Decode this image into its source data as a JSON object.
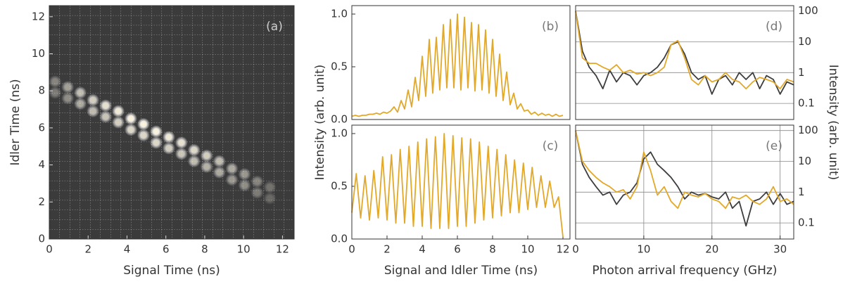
{
  "chart_data": [
    {
      "type": "heatmap",
      "xlabel": "Signal Time (ns)",
      "ylabel": "Idler Time (ns)",
      "panel_label": "(a)",
      "xlim": [
        0,
        12.6
      ],
      "ylim": [
        0,
        12.6
      ],
      "xticks": [
        0,
        2,
        4,
        6,
        8,
        10,
        12
      ],
      "yticks": [
        0,
        2,
        4,
        6,
        8,
        10,
        12
      ],
      "grid": true,
      "x": [
        0.3,
        0.95,
        1.6,
        2.25,
        2.9,
        3.55,
        4.2,
        4.85,
        5.5,
        6.15,
        6.8,
        7.45,
        8.1,
        8.75,
        9.4,
        10.05,
        10.7,
        11.35,
        0.3,
        0.95,
        1.6,
        2.25,
        2.9,
        3.55,
        4.2,
        4.85,
        5.5,
        6.15,
        6.8,
        7.45,
        8.1,
        8.75,
        9.4,
        10.05,
        10.7,
        11.35
      ],
      "values": [
        8.5,
        8.2,
        7.9,
        7.5,
        7.2,
        6.9,
        6.5,
        6.2,
        5.8,
        5.5,
        5.2,
        4.8,
        4.5,
        4.2,
        3.8,
        3.5,
        3.1,
        2.8,
        7.9,
        7.6,
        7.3,
        6.9,
        6.6,
        6.3,
        5.9,
        5.6,
        5.2,
        4.9,
        4.6,
        4.2,
        3.9,
        3.6,
        3.2,
        2.9,
        2.5,
        2.2
      ],
      "intensity": [
        0.4,
        0.55,
        0.7,
        0.8,
        0.9,
        0.95,
        1,
        1,
        1,
        0.95,
        0.9,
        0.85,
        0.8,
        0.7,
        0.6,
        0.5,
        0.4,
        0.3,
        0.35,
        0.45,
        0.6,
        0.7,
        0.75,
        0.8,
        0.85,
        0.85,
        0.85,
        0.8,
        0.75,
        0.7,
        0.65,
        0.6,
        0.5,
        0.45,
        0.35,
        0.25
      ]
    },
    {
      "type": "line",
      "ylabel": "Intensity (arb. unit)",
      "panel_label": "(b)",
      "color": "#e2a829",
      "xlim": [
        0,
        12.4
      ],
      "ylim": [
        0,
        1.08
      ],
      "yticks": [
        {
          "value": 0,
          "label": "0.0"
        },
        {
          "value": 0.5,
          "label": "0.5"
        },
        {
          "value": 1,
          "label": "1.0"
        }
      ],
      "x": [
        0,
        0.2,
        0.4,
        0.6,
        0.8,
        1,
        1.2,
        1.4,
        1.6,
        1.8,
        2,
        2.2,
        2.4,
        2.6,
        2.8,
        3,
        3.2,
        3.4,
        3.6,
        3.8,
        4,
        4.2,
        4.4,
        4.6,
        4.8,
        5,
        5.2,
        5.4,
        5.6,
        5.8,
        6,
        6.2,
        6.4,
        6.6,
        6.8,
        7,
        7.2,
        7.4,
        7.6,
        7.8,
        8,
        8.2,
        8.4,
        8.6,
        8.8,
        9,
        9.2,
        9.4,
        9.6,
        9.8,
        10,
        10.2,
        10.4,
        10.6,
        10.8,
        11,
        11.2,
        11.4,
        11.6,
        11.8,
        12
      ],
      "values": [
        0.03,
        0.04,
        0.03,
        0.04,
        0.04,
        0.05,
        0.05,
        0.06,
        0.05,
        0.07,
        0.06,
        0.08,
        0.12,
        0.07,
        0.18,
        0.1,
        0.28,
        0.12,
        0.4,
        0.18,
        0.6,
        0.22,
        0.76,
        0.25,
        0.78,
        0.28,
        0.9,
        0.3,
        0.95,
        0.3,
        1.0,
        0.28,
        0.97,
        0.3,
        0.92,
        0.27,
        0.9,
        0.28,
        0.85,
        0.25,
        0.76,
        0.22,
        0.62,
        0.18,
        0.45,
        0.14,
        0.25,
        0.1,
        0.15,
        0.08,
        0.09,
        0.05,
        0.07,
        0.04,
        0.06,
        0.04,
        0.05,
        0.03,
        0.05,
        0.03,
        0.04
      ]
    },
    {
      "type": "line",
      "xlabel": "Signal and Idler Time (ns)",
      "panel_label": "(c)",
      "color": "#e2a829",
      "xlim": [
        0,
        12.4
      ],
      "ylim": [
        0,
        1.08
      ],
      "xticks": [
        0,
        2,
        4,
        6,
        8,
        10,
        12
      ],
      "yticks": [
        {
          "value": 0,
          "label": "0.0"
        },
        {
          "value": 0.5,
          "label": "0.5"
        },
        {
          "value": 1,
          "label": "1.0"
        }
      ],
      "x": [
        0,
        0.25,
        0.5,
        0.75,
        1,
        1.25,
        1.5,
        1.75,
        2,
        2.25,
        2.5,
        2.75,
        3,
        3.25,
        3.5,
        3.75,
        4,
        4.25,
        4.5,
        4.75,
        5,
        5.25,
        5.5,
        5.75,
        6,
        6.25,
        6.5,
        6.75,
        7,
        7.25,
        7.5,
        7.75,
        8,
        8.25,
        8.5,
        8.75,
        9,
        9.25,
        9.5,
        9.75,
        10,
        10.25,
        10.5,
        10.75,
        11,
        11.25,
        11.5,
        11.75,
        12
      ],
      "values": [
        0.25,
        0.62,
        0.2,
        0.6,
        0.18,
        0.65,
        0.2,
        0.78,
        0.18,
        0.8,
        0.15,
        0.85,
        0.15,
        0.88,
        0.12,
        0.92,
        0.12,
        0.95,
        0.1,
        0.97,
        0.1,
        1.0,
        0.1,
        0.98,
        0.12,
        0.96,
        0.12,
        0.95,
        0.15,
        0.92,
        0.18,
        0.88,
        0.2,
        0.85,
        0.22,
        0.8,
        0.25,
        0.75,
        0.25,
        0.72,
        0.28,
        0.68,
        0.3,
        0.6,
        0.3,
        0.55,
        0.3,
        0.4,
        0.02
      ]
    },
    {
      "type": "line",
      "y2label": "Intensity (arb. unit)",
      "panel_label": "(d)",
      "log_y": true,
      "xlim": [
        0,
        32
      ],
      "y2lim": [
        0.03,
        150
      ],
      "y2ticks": [
        0.1,
        1,
        10,
        100
      ],
      "grid": true,
      "x": [
        0,
        1,
        2,
        3,
        4,
        5,
        6,
        7,
        8,
        9,
        10,
        11,
        12,
        13,
        14,
        15,
        16,
        17,
        18,
        19,
        20,
        21,
        22,
        23,
        24,
        25,
        26,
        27,
        28,
        29,
        30,
        31,
        32
      ],
      "series": [
        {
          "color": "#3d3d3d",
          "axis": "y2",
          "values": [
            100,
            5,
            1.5,
            0.8,
            0.3,
            1.2,
            0.5,
            1,
            0.8,
            0.4,
            0.8,
            1,
            1.5,
            3,
            8,
            10,
            4,
            1,
            0.6,
            0.8,
            0.2,
            0.6,
            0.8,
            0.4,
            1,
            0.6,
            1,
            0.3,
            0.8,
            0.6,
            0.2,
            0.5,
            0.4
          ]
        },
        {
          "color": "#e2a829",
          "axis": "y2",
          "values": [
            100,
            3,
            2,
            2,
            1.5,
            1.2,
            1.8,
            1,
            1.2,
            0.9,
            1,
            0.8,
            1,
            1.5,
            8,
            11,
            3,
            0.6,
            0.4,
            0.8,
            0.5,
            0.6,
            1,
            0.6,
            0.5,
            0.3,
            0.5,
            0.7,
            0.6,
            0.5,
            0.3,
            0.6,
            0.5
          ]
        }
      ]
    },
    {
      "type": "line",
      "xlabel": "Photon arrival frequency (GHz)",
      "panel_label": "(e)",
      "log_y": true,
      "xlim": [
        0,
        32
      ],
      "y2lim": [
        0.03,
        150
      ],
      "xticks": [
        0,
        10,
        20,
        30
      ],
      "y2ticks": [
        0.1,
        1,
        10,
        100
      ],
      "grid": true,
      "x": [
        0,
        1,
        2,
        3,
        4,
        5,
        6,
        7,
        8,
        9,
        10,
        11,
        12,
        13,
        14,
        15,
        16,
        17,
        18,
        19,
        20,
        21,
        22,
        23,
        24,
        25,
        26,
        27,
        28,
        29,
        30,
        31,
        32
      ],
      "series": [
        {
          "color": "#3d3d3d",
          "axis": "y2",
          "values": [
            100,
            8,
            3,
            1.5,
            0.8,
            1,
            0.4,
            0.8,
            1,
            2,
            12,
            20,
            8,
            5,
            3,
            1.5,
            0.6,
            1,
            0.8,
            0.9,
            0.7,
            0.6,
            1,
            0.3,
            0.5,
            0.08,
            0.5,
            0.6,
            1,
            0.4,
            0.9,
            0.4,
            0.5
          ]
        },
        {
          "color": "#e2a829",
          "axis": "y2",
          "values": [
            100,
            10,
            5,
            3,
            2,
            1.5,
            1,
            1.2,
            0.6,
            1.5,
            20,
            5,
            0.8,
            1.5,
            0.5,
            0.3,
            1,
            0.8,
            0.7,
            0.9,
            0.6,
            0.5,
            0.3,
            0.7,
            0.6,
            0.8,
            0.5,
            0.4,
            0.6,
            1.5,
            0.5,
            0.6,
            0.4
          ]
        }
      ]
    }
  ]
}
